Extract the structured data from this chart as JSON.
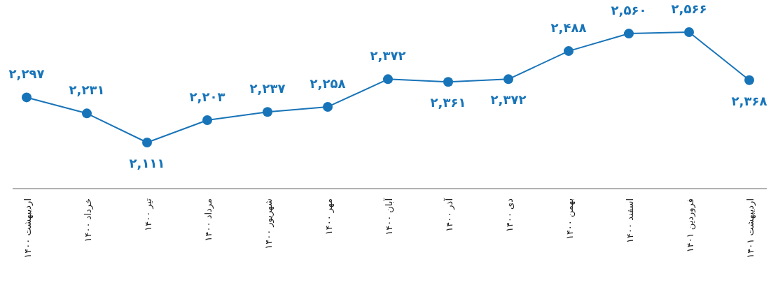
{
  "chart_data": {
    "type": "line",
    "categories": [
      "اردیبهشت ۱۴۰۰",
      "خرداد ۱۴۰۰",
      "تیر ۱۴۰۰",
      "مرداد ۱۴۰۰",
      "شهریور ۱۴۰۰",
      "مهر ۱۴۰۰",
      "آبان ۱۴۰۰",
      "آذر ۱۴۰۰",
      "دی ۱۴۰۰",
      "بهمن ۱۴۰۰",
      "اسفند ۱۴۰۰",
      "فروردین ۱۴۰۱",
      "اردیبهشت ۱۴۰۱"
    ],
    "series": [
      {
        "color": "#1874b8",
        "values": [
          2297,
          2231,
          2111,
          2203,
          2237,
          2258,
          2372,
          2361,
          2372,
          2488,
          2560,
          2566,
          2368
        ],
        "value_labels": [
          "۲,۲۹۷",
          "۲,۲۳۱",
          "۲,۱۱۱",
          "۲,۲۰۳",
          "۲,۲۳۷",
          "۲,۲۵۸",
          "۲,۳۷۲",
          "۲,۳۶۱",
          "۲,۳۷۲",
          "۲,۴۸۸",
          "۲,۵۶۰",
          "۲,۵۶۶",
          "۲,۳۶۸"
        ]
      }
    ],
    "marker": "circle",
    "line_style": "solid"
  }
}
